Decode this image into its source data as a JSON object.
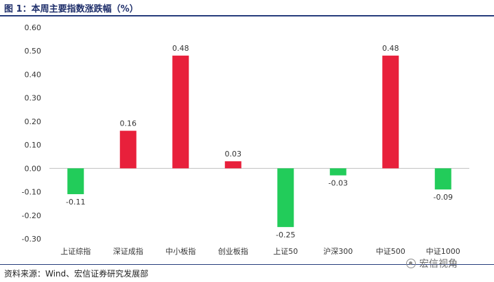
{
  "title": "图 1：本周主要指数涨跌幅（%）",
  "source": "资料来源：Wind、宏信证券研究发展部",
  "watermark": {
    "text": "宏信视角",
    "icon": "wechat-icon"
  },
  "colors": {
    "up": "#e8203b",
    "down": "#22cc5a",
    "accent": "#233a7a"
  },
  "chart_data": {
    "type": "bar",
    "title": "",
    "xlabel": "",
    "ylabel": "",
    "categories": [
      "上证综指",
      "深证成指",
      "中小板指",
      "创业板指",
      "上证50",
      "沪深300",
      "中证500",
      "中证1000"
    ],
    "values": [
      -0.11,
      0.16,
      0.48,
      0.03,
      -0.25,
      -0.03,
      0.48,
      -0.09
    ],
    "data_labels": [
      "-0.11",
      "0.16",
      "0.48",
      "0.03",
      "-0.25",
      "-0.03",
      "0.48",
      "-0.09"
    ],
    "ylim": [
      -0.3,
      0.6
    ],
    "yticks": [
      0.6,
      0.5,
      0.4,
      0.3,
      0.2,
      0.1,
      0.0,
      -0.1,
      -0.2,
      -0.3
    ],
    "ytick_labels": [
      "0.60",
      "0.50",
      "0.40",
      "0.30",
      "0.20",
      "0.10",
      "0.00",
      "-0.10",
      "-0.20",
      "-0.30"
    ],
    "grid": false,
    "legend": "none"
  }
}
